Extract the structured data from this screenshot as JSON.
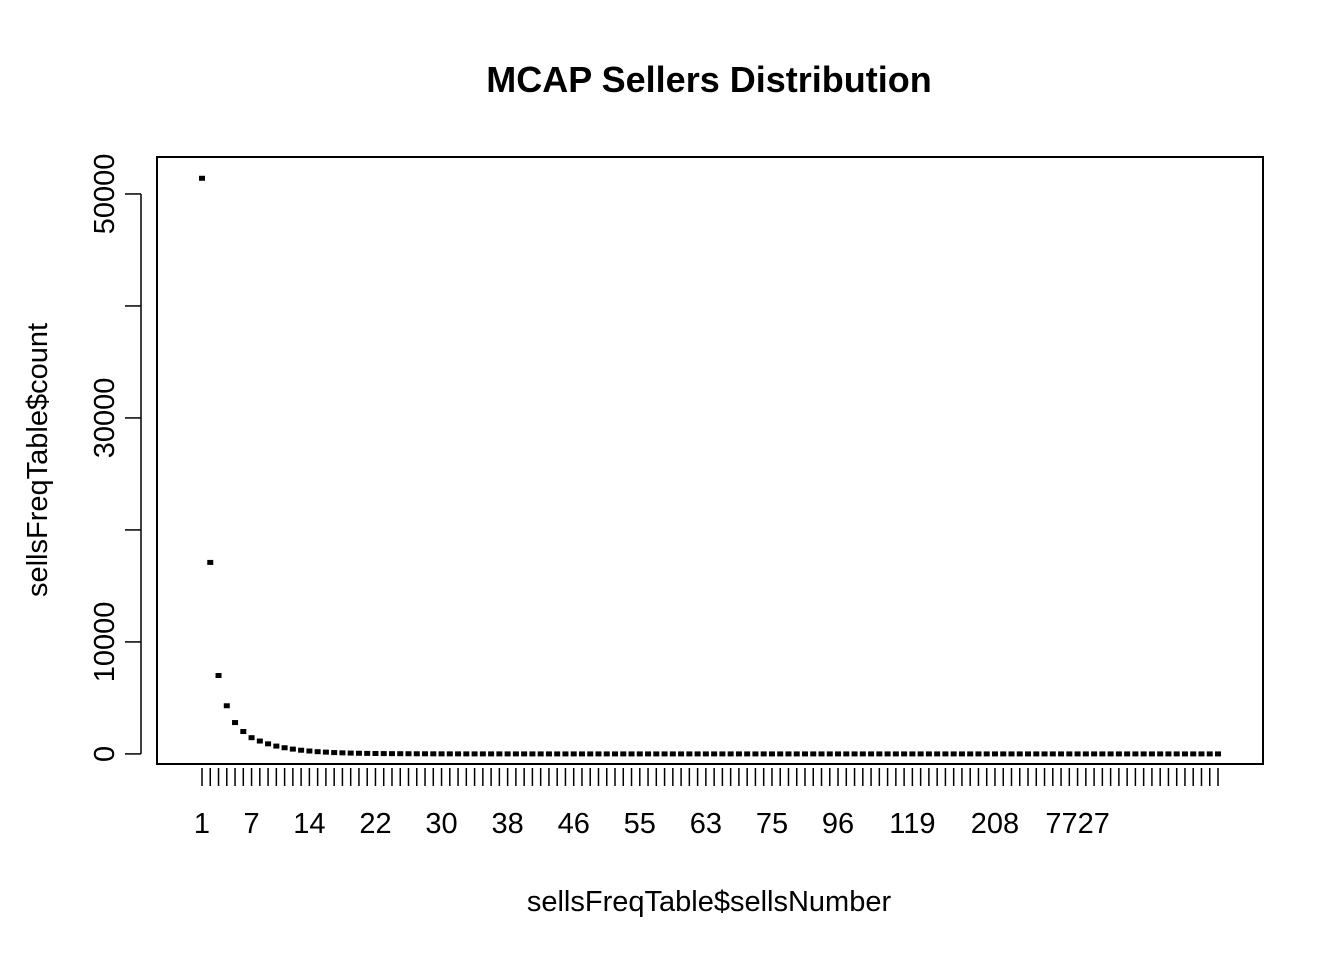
{
  "chart_data": {
    "type": "scatter",
    "title": "MCAP Sellers Distribution",
    "xlabel": "sellsFreqTable$sellsNumber",
    "ylabel": "sellsFreqTable$count",
    "ylim": [
      -900,
      53300
    ],
    "y_ticks": [
      0,
      10000,
      20000,
      30000,
      40000,
      50000
    ],
    "y_tick_labels": [
      "0",
      "10000",
      "",
      "30000",
      "",
      "50000"
    ],
    "x_categories_count": 124,
    "x_tick_labels": [
      {
        "index": 0,
        "label": "1"
      },
      {
        "index": 6,
        "label": "7"
      },
      {
        "index": 13,
        "label": "14"
      },
      {
        "index": 21,
        "label": "22"
      },
      {
        "index": 29,
        "label": "30"
      },
      {
        "index": 37,
        "label": "38"
      },
      {
        "index": 45,
        "label": "46"
      },
      {
        "index": 53,
        "label": "55"
      },
      {
        "index": 61,
        "label": "63"
      },
      {
        "index": 69,
        "label": "75"
      },
      {
        "index": 77,
        "label": "96"
      },
      {
        "index": 86,
        "label": "119"
      },
      {
        "index": 96,
        "label": "208"
      },
      {
        "index": 106,
        "label": "7727"
      }
    ],
    "values": [
      51400,
      17100,
      7000,
      4300,
      2800,
      2000,
      1450,
      1150,
      900,
      700,
      550,
      430,
      330,
      260,
      200,
      160,
      120,
      95,
      75,
      60,
      48,
      38,
      30,
      25,
      20,
      16,
      13,
      11,
      9,
      7,
      6,
      5,
      4,
      4,
      3,
      3,
      3,
      2,
      2,
      2,
      2,
      2,
      1,
      1,
      1,
      1,
      1,
      1,
      1,
      1,
      1,
      1,
      1,
      1,
      1,
      1,
      1,
      1,
      1,
      1,
      1,
      1,
      1,
      1,
      1,
      1,
      1,
      1,
      1,
      1,
      1,
      1,
      1,
      1,
      1,
      1,
      1,
      1,
      1,
      1,
      1,
      1,
      1,
      1,
      1,
      1,
      1,
      1,
      1,
      1,
      1,
      1,
      1,
      1,
      1,
      1,
      1,
      1,
      1,
      1,
      1,
      1,
      1,
      1,
      1,
      1,
      1,
      1,
      1,
      1,
      1,
      1,
      1,
      1,
      1,
      1,
      1,
      1,
      1,
      1,
      1,
      1,
      1,
      1
    ],
    "marker": "small-filled-square",
    "point_color": "#000000",
    "grid": false,
    "legend": "none"
  }
}
